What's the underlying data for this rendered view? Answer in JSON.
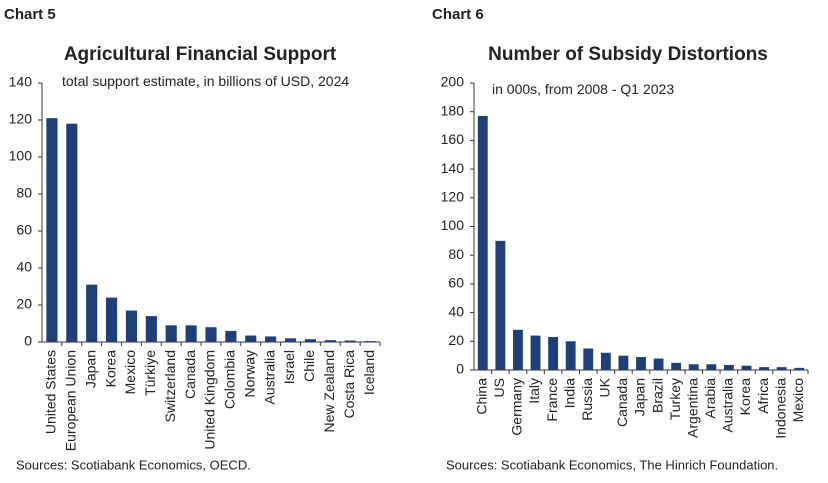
{
  "chart_data": [
    {
      "type": "bar",
      "label": "Chart 5",
      "title": "Agricultural Financial Support",
      "subtitle": "total support estimate, in billions of USD, 2024",
      "categories": [
        "United States",
        "European Union",
        "Japan",
        "Korea",
        "Mexico",
        "Türkiye",
        "Switzerland",
        "Canada",
        "United Kingdom",
        "Colombia",
        "Norway",
        "Australia",
        "Israel",
        "Chile",
        "New Zealand",
        "Costa Rica",
        "Iceland"
      ],
      "values": [
        121,
        118,
        31,
        24,
        17,
        14,
        9,
        9,
        8,
        6,
        3.5,
        3,
        2,
        1.5,
        1,
        0.8,
        0.5
      ],
      "color": "#1f3f7a",
      "ylim": [
        0,
        140
      ],
      "yticks": [
        0,
        20,
        40,
        60,
        80,
        100,
        120,
        140
      ],
      "source": "Sources: Scotiabank Economics, OECD."
    },
    {
      "type": "bar",
      "label": "Chart 6",
      "title": "Number of Subsidy Distortions",
      "subtitle": "in 000s,  from 2008 - Q1 2023",
      "categories": [
        "China",
        "US",
        "Germany",
        "Italy",
        "France",
        "India",
        "Russia",
        "UK",
        "Canada",
        "Japan",
        "Brazil",
        "Turkey",
        "Argentina",
        "Arabia",
        "Australia",
        "Korea",
        "Africa",
        "Indonesia",
        "Mexico"
      ],
      "values": [
        177,
        90,
        28,
        24,
        23,
        20,
        15,
        12,
        10,
        9,
        8,
        5,
        4,
        4,
        3.5,
        3,
        2,
        2,
        1.5
      ],
      "color": "#1f3f7a",
      "ylim": [
        0,
        200
      ],
      "yticks": [
        0,
        20,
        40,
        60,
        80,
        100,
        120,
        140,
        160,
        180,
        200
      ],
      "source": "Sources: Scotiabank Economics, The Hinrich Foundation."
    }
  ]
}
